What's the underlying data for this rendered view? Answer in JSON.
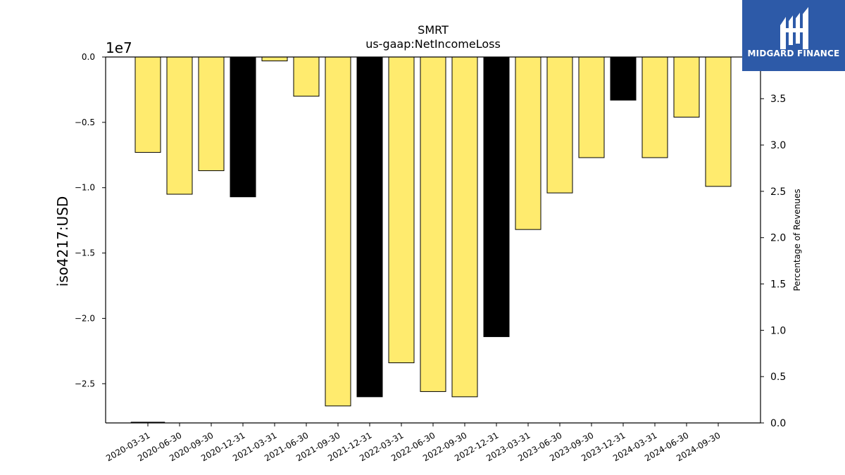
{
  "logo": {
    "text": "MIDGARD FINANCE"
  },
  "chart_data": {
    "type": "bar",
    "title": "SMRT",
    "subtitle": "us-gaap:NetIncomeLoss",
    "ylabel": "iso4217:USD",
    "y_offset_label": "1e7",
    "y2label": "Percentage of Revenues",
    "ylim": [
      -2.8,
      0.0
    ],
    "y2lim": [
      0.0,
      3.95
    ],
    "yticks": [
      "0.0",
      "−0.5",
      "−1.0",
      "−1.5",
      "−2.0",
      "−2.5"
    ],
    "y2ticks": [
      "0.0",
      "0.5",
      "1.0",
      "1.5",
      "2.0",
      "2.5",
      "3.0",
      "3.5"
    ],
    "categories": [
      "2020-03-31",
      "2020-06-30",
      "2020-09-30",
      "2020-12-31",
      "2021-03-31",
      "2021-06-30",
      "2021-09-30",
      "2021-12-31",
      "2022-03-31",
      "2022-06-30",
      "2022-09-30",
      "2022-12-31",
      "2023-03-31",
      "2023-06-30",
      "2023-09-30",
      "2023-12-31",
      "2024-03-31",
      "2024-06-30",
      "2024-09-30"
    ],
    "values": [
      -0.73,
      -1.05,
      -0.87,
      -1.07,
      -0.03,
      -0.3,
      -2.67,
      -2.6,
      -2.34,
      -2.56,
      -2.6,
      -2.14,
      -1.32,
      -1.04,
      -0.77,
      -0.33,
      -0.77,
      -0.46,
      -0.99
    ],
    "bar_colors": [
      "#ffeb6e",
      "#ffeb6e",
      "#ffeb6e",
      "#000000",
      "#ffeb6e",
      "#ffeb6e",
      "#ffeb6e",
      "#000000",
      "#ffeb6e",
      "#ffeb6e",
      "#ffeb6e",
      "#000000",
      "#ffeb6e",
      "#ffeb6e",
      "#ffeb6e",
      "#000000",
      "#ffeb6e",
      "#ffeb6e",
      "#ffeb6e"
    ],
    "percentage_series": {
      "values": [
        0.01
      ],
      "categories": [
        "2020-03-31"
      ]
    },
    "grid": false,
    "legend": "none"
  }
}
